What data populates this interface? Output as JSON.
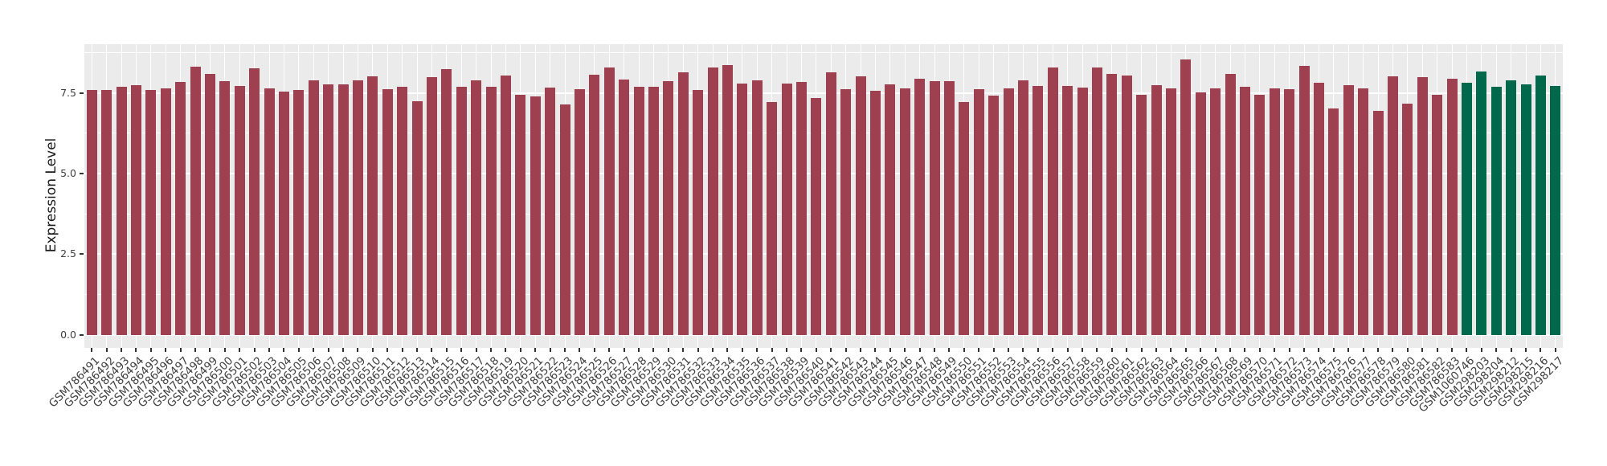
{
  "chart_data": {
    "type": "bar",
    "title": "",
    "ylabel": "Expression Level",
    "xlabel": "",
    "legend": "none",
    "grid": "white major+minor gridlines on grey panel, vertical gridline at each category",
    "yticks": [
      0,
      2.5,
      5,
      7.5
    ],
    "ytick_labels": [
      "0.0",
      "2.5",
      "5.0",
      "7.5"
    ],
    "minor_yticks": [
      1.25,
      3.75,
      6.25,
      8.75
    ],
    "ylim": [
      0,
      9.0
    ],
    "panel_range": [
      -0.41,
      9.01
    ],
    "bar_color": "#9E4050",
    "highlight_color": "#00684B",
    "highlight_last_n": 7,
    "panel_background": "#EBEBEB",
    "gridline_color": "#FFFFFF",
    "axis_text_color": "#404040",
    "tick_mark_color": "#333333",
    "categories": [
      "GSM786491",
      "GSM786492",
      "GSM786493",
      "GSM786494",
      "GSM786495",
      "GSM786496",
      "GSM786497",
      "GSM786498",
      "GSM786499",
      "GSM786500",
      "GSM786501",
      "GSM786502",
      "GSM786503",
      "GSM786504",
      "GSM786505",
      "GSM786506",
      "GSM786507",
      "GSM786508",
      "GSM786509",
      "GSM786510",
      "GSM786511",
      "GSM786512",
      "GSM786513",
      "GSM786514",
      "GSM786515",
      "GSM786516",
      "GSM786517",
      "GSM786518",
      "GSM786519",
      "GSM786520",
      "GSM786521",
      "GSM786522",
      "GSM786523",
      "GSM786524",
      "GSM786525",
      "GSM786526",
      "GSM786527",
      "GSM786528",
      "GSM786529",
      "GSM786530",
      "GSM786531",
      "GSM786532",
      "GSM786533",
      "GSM786534",
      "GSM786535",
      "GSM786536",
      "GSM786537",
      "GSM786538",
      "GSM786539",
      "GSM786540",
      "GSM786541",
      "GSM786542",
      "GSM786543",
      "GSM786544",
      "GSM786545",
      "GSM786546",
      "GSM786547",
      "GSM786548",
      "GSM786549",
      "GSM786550",
      "GSM786551",
      "GSM786552",
      "GSM786553",
      "GSM786554",
      "GSM786555",
      "GSM786556",
      "GSM786557",
      "GSM786558",
      "GSM786559",
      "GSM786560",
      "GSM786561",
      "GSM786562",
      "GSM786563",
      "GSM786564",
      "GSM786565",
      "GSM786566",
      "GSM786567",
      "GSM786568",
      "GSM786569",
      "GSM786570",
      "GSM786571",
      "GSM786572",
      "GSM786573",
      "GSM786574",
      "GSM786575",
      "GSM786576",
      "GSM786577",
      "GSM786578",
      "GSM786579",
      "GSM786580",
      "GSM786581",
      "GSM786582",
      "GSM786583",
      "GSM1060746",
      "GSM298203",
      "GSM298204",
      "GSM298212",
      "GSM298215",
      "GSM298216",
      "GSM298217"
    ],
    "values": [
      7.58,
      7.58,
      7.7,
      7.73,
      7.58,
      7.65,
      7.84,
      8.3,
      8.08,
      7.87,
      7.72,
      8.27,
      7.64,
      7.53,
      7.58,
      7.88,
      7.77,
      7.77,
      7.9,
      8.02,
      7.61,
      7.68,
      7.24,
      7.99,
      8.24,
      7.68,
      7.88,
      7.68,
      8.04,
      7.44,
      7.38,
      7.66,
      7.14,
      7.62,
      8.07,
      8.28,
      7.92,
      7.7,
      7.68,
      7.86,
      8.15,
      7.59,
      8.28,
      8.36,
      7.79,
      7.89,
      7.21,
      7.79,
      7.84,
      7.34,
      8.13,
      7.61,
      8.01,
      7.56,
      7.76,
      7.64,
      7.95,
      7.87,
      7.87,
      7.21,
      7.61,
      7.41,
      7.64,
      7.9,
      7.71,
      8.29,
      7.71,
      7.66,
      8.29,
      8.1,
      8.04,
      7.45,
      7.74,
      7.65,
      8.54,
      7.51,
      7.64,
      8.08,
      7.69,
      7.43,
      7.63,
      7.62,
      8.33,
      7.82,
      7.01,
      7.73,
      7.65,
      6.95,
      8.01,
      7.16,
      8.0,
      7.44,
      7.93,
      7.82,
      8.17,
      7.68,
      7.88,
      7.76,
      8.05,
      7.71
    ]
  }
}
